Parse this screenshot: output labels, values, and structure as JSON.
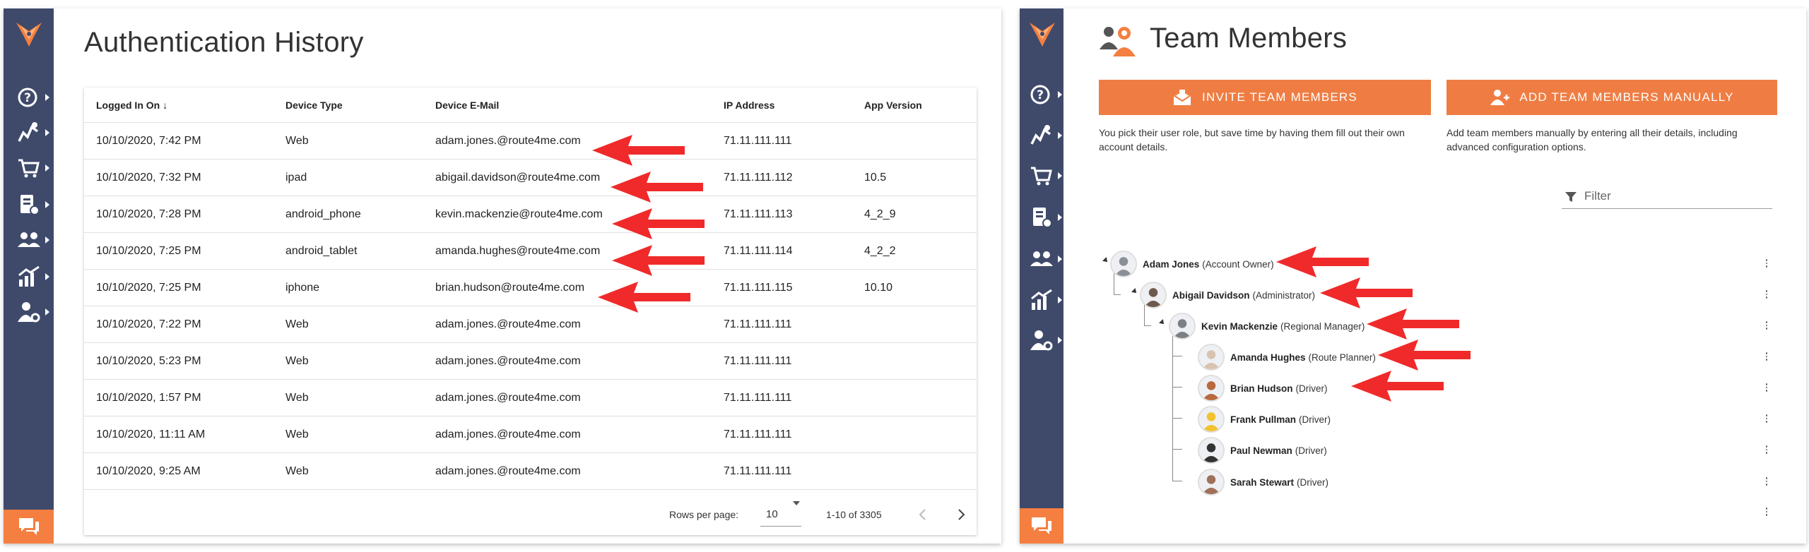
{
  "auth": {
    "title": "Authentication History",
    "columns": [
      "Logged In On",
      "Device Type",
      "Device E-Mail",
      "IP Address",
      "App Version"
    ],
    "sort_indicator": "↓",
    "rows": [
      {
        "date": "10/10/2020, 7:42 PM",
        "device": "Web",
        "email": "adam.jones.@route4me.com",
        "ip": "71.11.111.111",
        "version": ""
      },
      {
        "date": "10/10/2020, 7:32 PM",
        "device": "ipad",
        "email": "abigail.davidson@route4me.com",
        "ip": "71.11.111.112",
        "version": "10.5"
      },
      {
        "date": "10/10/2020, 7:28 PM",
        "device": "android_phone",
        "email": "kevin.mackenzie@route4me.com",
        "ip": "71.11.111.113",
        "version": "4_2_9"
      },
      {
        "date": "10/10/2020, 7:25 PM",
        "device": "android_tablet",
        "email": "amanda.hughes@route4me.com",
        "ip": "71.11.111.114",
        "version": "4_2_2"
      },
      {
        "date": "10/10/2020, 7:25 PM",
        "device": "iphone",
        "email": "brian.hudson@route4me.com",
        "ip": "71.11.111.115",
        "version": "10.10"
      },
      {
        "date": "10/10/2020, 7:22 PM",
        "device": "Web",
        "email": "adam.jones.@route4me.com",
        "ip": "71.11.111.111",
        "version": ""
      },
      {
        "date": "10/10/2020, 5:23 PM",
        "device": "Web",
        "email": "adam.jones.@route4me.com",
        "ip": "71.11.111.111",
        "version": ""
      },
      {
        "date": "10/10/2020, 1:57 PM",
        "device": "Web",
        "email": "adam.jones.@route4me.com",
        "ip": "71.11.111.111",
        "version": ""
      },
      {
        "date": "10/10/2020, 11:11 AM",
        "device": "Web",
        "email": "adam.jones.@route4me.com",
        "ip": "71.11.111.111",
        "version": ""
      },
      {
        "date": "10/10/2020, 9:25 AM",
        "device": "Web",
        "email": "adam.jones.@route4me.com",
        "ip": "71.11.111.111",
        "version": ""
      }
    ],
    "pager": {
      "rows_label": "Rows per page:",
      "rows_value": "10",
      "range": "1-10 of 3305"
    }
  },
  "team": {
    "title": "Team Members",
    "invite_label": "INVITE TEAM MEMBERS",
    "add_label": "ADD TEAM MEMBERS MANUALLY",
    "invite_desc_1": "You pick their user role, but save time by having them fill out their own",
    "invite_desc_2": "account details.",
    "add_desc_1": "Add team members manually by entering all their details, including",
    "add_desc_2": "advanced configuration options.",
    "filter_placeholder": "Filter",
    "members": [
      {
        "name": "Adam Jones",
        "role": "(Account Owner)"
      },
      {
        "name": "Abigail Davidson",
        "role": "(Administrator)"
      },
      {
        "name": "Kevin Mackenzie",
        "role": "(Regional Manager)"
      },
      {
        "name": "Amanda Hughes",
        "role": "(Route Planner)"
      },
      {
        "name": "Brian Hudson",
        "role": "(Driver)"
      },
      {
        "name": "Frank Pullman",
        "role": "(Driver)"
      },
      {
        "name": "Paul Newman",
        "role": "(Driver)"
      },
      {
        "name": "Sarah Stewart",
        "role": "(Driver)"
      }
    ]
  },
  "icons": {
    "logo": "route4me-logo-icon",
    "nav": [
      "help-icon",
      "routes-icon",
      "cart-icon",
      "delivery-icon",
      "team-icon",
      "analytics-icon",
      "user-settings-icon"
    ],
    "chat": "chat-icon"
  },
  "colors": {
    "sidebar": "#3f4a6b",
    "accent": "#f47f40",
    "annotation_arrow": "#f02a2a"
  }
}
